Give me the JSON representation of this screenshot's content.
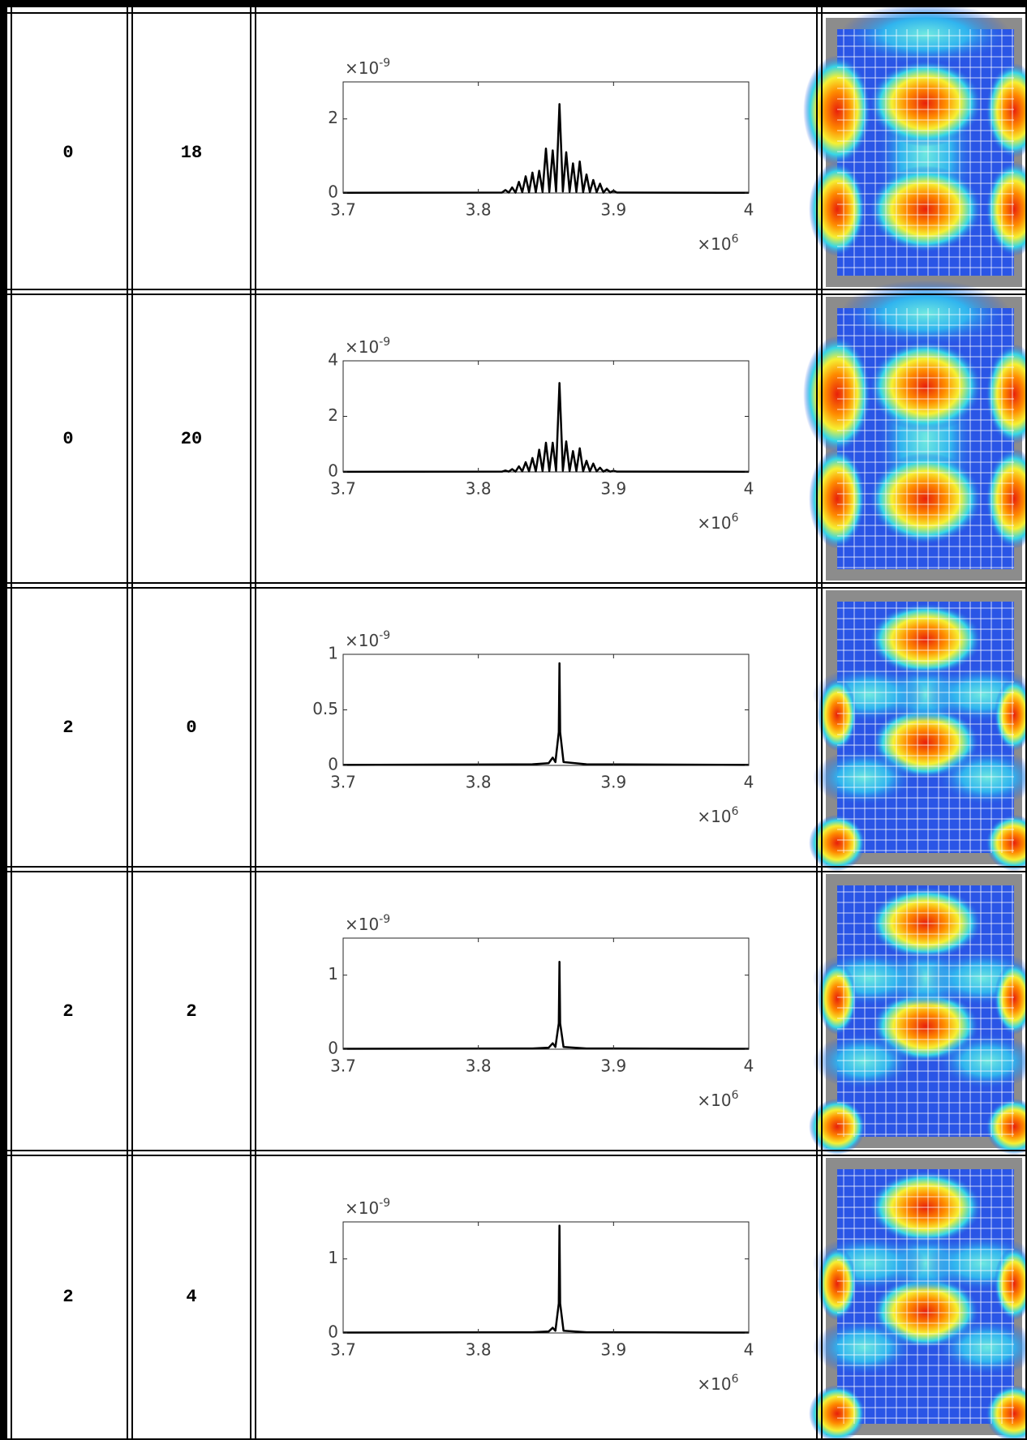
{
  "table": {
    "rows": [
      {
        "cells": [
          "0",
          "18"
        ]
      },
      {
        "cells": [
          "0",
          "20"
        ]
      },
      {
        "cells": [
          "2",
          "0"
        ]
      },
      {
        "cells": [
          "2",
          "2"
        ]
      },
      {
        "cells": [
          "2",
          "4"
        ]
      }
    ]
  },
  "chart_data": [
    {
      "type": "line",
      "xlim": [
        3.7,
        4
      ],
      "xticks": [
        3.7,
        3.8,
        3.9,
        4
      ],
      "ylim": [
        0,
        3
      ],
      "yticks": [
        0,
        2
      ],
      "x_multiplier": {
        "base": "×10",
        "exponent": "6"
      },
      "y_multiplier": {
        "base": "×10",
        "exponent": "-9"
      },
      "x": [
        3.7,
        3.8175,
        3.82,
        3.8225,
        3.825,
        3.8275,
        3.83,
        3.8325,
        3.835,
        3.8375,
        3.84,
        3.8425,
        3.845,
        3.8475,
        3.85,
        3.8525,
        3.855,
        3.8575,
        3.86,
        3.8625,
        3.865,
        3.8675,
        3.87,
        3.8725,
        3.875,
        3.8775,
        3.88,
        3.8825,
        3.885,
        3.8875,
        3.89,
        3.8925,
        3.895,
        3.8975,
        3.9,
        3.9025,
        4
      ],
      "series": [
        {
          "color": "#000000",
          "values": [
            0.005,
            0.01,
            0.08,
            0.01,
            0.15,
            0.01,
            0.3,
            0.02,
            0.45,
            0.02,
            0.55,
            0.02,
            0.6,
            0.03,
            1.2,
            0.03,
            1.15,
            0.04,
            2.4,
            0.04,
            1.1,
            0.03,
            0.8,
            0.03,
            0.85,
            0.02,
            0.5,
            0.02,
            0.35,
            0.02,
            0.25,
            0.01,
            0.12,
            0.01,
            0.06,
            0.01,
            0.005
          ]
        }
      ]
    },
    {
      "type": "line",
      "xlim": [
        3.7,
        4
      ],
      "xticks": [
        3.7,
        3.8,
        3.9,
        4
      ],
      "ylim": [
        0,
        4
      ],
      "yticks": [
        0,
        2,
        4
      ],
      "x_multiplier": {
        "base": "×10",
        "exponent": "6"
      },
      "y_multiplier": {
        "base": "×10",
        "exponent": "-9"
      },
      "x": [
        3.7,
        3.8175,
        3.82,
        3.8225,
        3.825,
        3.8275,
        3.83,
        3.8325,
        3.835,
        3.8375,
        3.84,
        3.8425,
        3.845,
        3.8475,
        3.85,
        3.8525,
        3.855,
        3.8575,
        3.86,
        3.8625,
        3.865,
        3.8675,
        3.87,
        3.8725,
        3.875,
        3.8775,
        3.88,
        3.8825,
        3.885,
        3.8875,
        3.89,
        3.8925,
        3.895,
        3.8975,
        3.9,
        3.9025,
        4
      ],
      "series": [
        {
          "color": "#000000",
          "values": [
            0.005,
            0.01,
            0.05,
            0.01,
            0.1,
            0.01,
            0.2,
            0.02,
            0.35,
            0.02,
            0.5,
            0.02,
            0.8,
            0.03,
            1.05,
            0.03,
            1.05,
            0.04,
            3.2,
            0.04,
            1.1,
            0.03,
            0.75,
            0.03,
            0.85,
            0.02,
            0.4,
            0.02,
            0.3,
            0.02,
            0.15,
            0.01,
            0.08,
            0.01,
            0.04,
            0.01,
            0.005
          ]
        }
      ]
    },
    {
      "type": "line",
      "xlim": [
        3.7,
        4
      ],
      "xticks": [
        3.7,
        3.8,
        3.9,
        4
      ],
      "ylim": [
        0,
        1
      ],
      "yticks": [
        0,
        0.5,
        1
      ],
      "x_multiplier": {
        "base": "×10",
        "exponent": "6"
      },
      "y_multiplier": {
        "base": "×10",
        "exponent": "-9"
      },
      "x": [
        3.7,
        3.84,
        3.852,
        3.855,
        3.857,
        3.8595,
        3.86,
        3.8605,
        3.863,
        3.88,
        4
      ],
      "series": [
        {
          "color": "#000000",
          "values": [
            0.005,
            0.01,
            0.02,
            0.07,
            0.03,
            0.3,
            0.92,
            0.3,
            0.03,
            0.01,
            0.005
          ]
        }
      ]
    },
    {
      "type": "line",
      "xlim": [
        3.7,
        4
      ],
      "xticks": [
        3.7,
        3.8,
        3.9,
        4
      ],
      "ylim": [
        0,
        1.5
      ],
      "yticks": [
        0,
        1
      ],
      "x_multiplier": {
        "base": "×10",
        "exponent": "6"
      },
      "y_multiplier": {
        "base": "×10",
        "exponent": "-9"
      },
      "x": [
        3.7,
        3.84,
        3.852,
        3.855,
        3.857,
        3.8595,
        3.86,
        3.8605,
        3.863,
        3.88,
        4
      ],
      "series": [
        {
          "color": "#000000",
          "values": [
            0.005,
            0.01,
            0.02,
            0.08,
            0.03,
            0.35,
            1.18,
            0.35,
            0.03,
            0.01,
            0.005
          ]
        }
      ]
    },
    {
      "type": "line",
      "xlim": [
        3.7,
        4
      ],
      "xticks": [
        3.7,
        3.8,
        3.9,
        4
      ],
      "ylim": [
        0,
        1.5
      ],
      "yticks": [
        0,
        1
      ],
      "x_multiplier": {
        "base": "×10",
        "exponent": "6"
      },
      "y_multiplier": {
        "base": "×10",
        "exponent": "-9"
      },
      "x": [
        3.7,
        3.84,
        3.852,
        3.855,
        3.857,
        3.8595,
        3.86,
        3.8605,
        3.863,
        3.88,
        4
      ],
      "series": [
        {
          "color": "#000000",
          "values": [
            0.005,
            0.01,
            0.02,
            0.07,
            0.03,
            0.4,
            1.45,
            0.4,
            0.03,
            0.01,
            0.005
          ]
        }
      ]
    }
  ]
}
